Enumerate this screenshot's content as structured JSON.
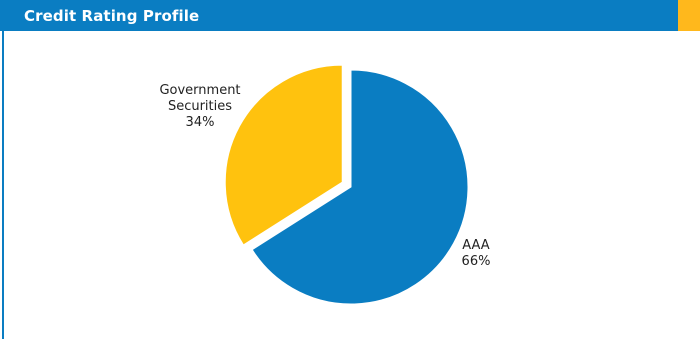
{
  "header": {
    "title": "Credit Rating Profile"
  },
  "colors": {
    "header_bg": "#0a7dc2",
    "accent": "#ffb81c",
    "rule": "#0a7dc2",
    "slice_aaa": "#0a7dc2",
    "slice_gov": "#ffc20e"
  },
  "chart_data": {
    "type": "pie",
    "title": "Credit Rating Profile",
    "slices": [
      {
        "label": "AAA",
        "value": 66,
        "value_label": "66%",
        "color": "#0a7dc2",
        "exploded": false
      },
      {
        "label": "Government Securities",
        "label_lines": [
          "Government",
          "Securities"
        ],
        "value": 34,
        "value_label": "34%",
        "color": "#ffc20e",
        "exploded": true
      }
    ],
    "legend": "none",
    "start_angle": "top",
    "direction": "clockwise"
  }
}
